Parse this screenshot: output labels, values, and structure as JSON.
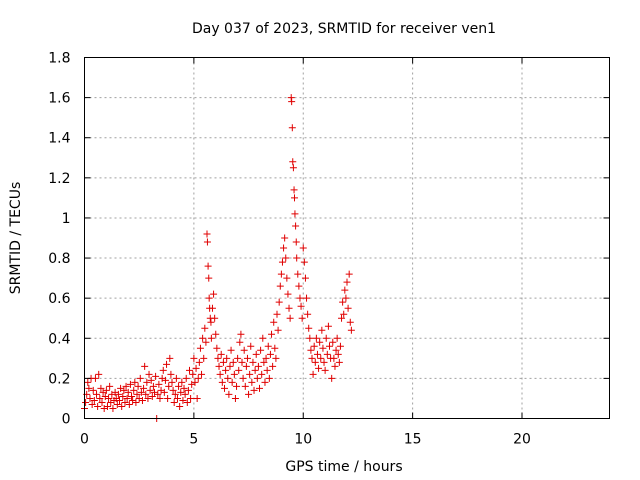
{
  "chart_data": {
    "type": "scatter",
    "title": "Day 037 of 2023, SRMTID for receiver ven1",
    "xlabel": "GPS time / hours",
    "ylabel": "SRMTID / TECUs",
    "xlim": [
      0,
      24
    ],
    "ylim": [
      0,
      1.8
    ],
    "xticks": [
      0,
      5,
      10,
      15,
      20
    ],
    "yticks": [
      0,
      0.2,
      0.4,
      0.6,
      0.8,
      1,
      1.2,
      1.4,
      1.6,
      1.8
    ],
    "xtick_labels": [
      "0",
      "5",
      "10",
      "15",
      "20"
    ],
    "ytick_labels": [
      "0",
      "0.2",
      "0.4",
      "0.6",
      "0.8",
      "1",
      "1.2",
      "1.4",
      "1.6",
      "1.8"
    ],
    "grid": true,
    "marker": "plus",
    "color": "#e00000",
    "series": [
      {
        "name": "ven1",
        "points": [
          [
            0.0,
            0.05
          ],
          [
            0.05,
            0.08
          ],
          [
            0.1,
            0.12
          ],
          [
            0.15,
            0.18
          ],
          [
            0.2,
            0.15
          ],
          [
            0.25,
            0.1
          ],
          [
            0.3,
            0.2
          ],
          [
            0.35,
            0.07
          ],
          [
            0.4,
            0.14
          ],
          [
            0.45,
            0.09
          ],
          [
            0.5,
            0.2
          ],
          [
            0.55,
            0.12
          ],
          [
            0.6,
            0.06
          ],
          [
            0.65,
            0.22
          ],
          [
            0.7,
            0.1
          ],
          [
            0.75,
            0.15
          ],
          [
            0.8,
            0.08
          ],
          [
            0.85,
            0.13
          ],
          [
            0.9,
            0.05
          ],
          [
            0.95,
            0.11
          ],
          [
            1.0,
            0.14
          ],
          [
            1.05,
            0.06
          ],
          [
            1.1,
            0.1
          ],
          [
            1.15,
            0.16
          ],
          [
            1.2,
            0.08
          ],
          [
            1.25,
            0.12
          ],
          [
            1.3,
            0.05
          ],
          [
            1.35,
            0.09
          ],
          [
            1.4,
            0.13
          ],
          [
            1.45,
            0.1
          ],
          [
            1.5,
            0.07
          ],
          [
            1.55,
            0.12
          ],
          [
            1.6,
            0.09
          ],
          [
            1.65,
            0.15
          ],
          [
            1.7,
            0.06
          ],
          [
            1.75,
            0.11
          ],
          [
            1.8,
            0.14
          ],
          [
            1.85,
            0.08
          ],
          [
            1.9,
            0.16
          ],
          [
            1.95,
            0.1
          ],
          [
            2.0,
            0.13
          ],
          [
            2.05,
            0.07
          ],
          [
            2.1,
            0.17
          ],
          [
            2.15,
            0.11
          ],
          [
            2.2,
            0.09
          ],
          [
            2.25,
            0.14
          ],
          [
            2.3,
            0.18
          ],
          [
            2.35,
            0.08
          ],
          [
            2.4,
            0.12
          ],
          [
            2.45,
            0.16
          ],
          [
            2.5,
            0.1
          ],
          [
            2.55,
            0.2
          ],
          [
            2.6,
            0.13
          ],
          [
            2.65,
            0.09
          ],
          [
            2.7,
            0.15
          ],
          [
            2.75,
            0.26
          ],
          [
            2.8,
            0.12
          ],
          [
            2.85,
            0.18
          ],
          [
            2.9,
            0.1
          ],
          [
            2.95,
            0.22
          ],
          [
            3.0,
            0.14
          ],
          [
            3.05,
            0.19
          ],
          [
            3.1,
            0.11
          ],
          [
            3.15,
            0.16
          ],
          [
            3.2,
            0.13
          ],
          [
            3.25,
            0.21
          ],
          [
            3.3,
            0.0
          ],
          [
            3.35,
            0.12
          ],
          [
            3.4,
            0.17
          ],
          [
            3.45,
            0.1
          ],
          [
            3.5,
            0.14
          ],
          [
            3.55,
            0.2
          ],
          [
            3.6,
            0.24
          ],
          [
            3.65,
            0.13
          ],
          [
            3.7,
            0.19
          ],
          [
            3.75,
            0.27
          ],
          [
            3.8,
            0.1
          ],
          [
            3.85,
            0.16
          ],
          [
            3.9,
            0.3
          ],
          [
            3.95,
            0.22
          ],
          [
            4.0,
            0.18
          ],
          [
            4.05,
            0.14
          ],
          [
            4.1,
            0.08
          ],
          [
            4.15,
            0.12
          ],
          [
            4.2,
            0.2
          ],
          [
            4.25,
            0.1
          ],
          [
            4.3,
            0.16
          ],
          [
            4.35,
            0.06
          ],
          [
            4.4,
            0.13
          ],
          [
            4.45,
            0.18
          ],
          [
            4.5,
            0.09
          ],
          [
            4.55,
            0.15
          ],
          [
            4.6,
            0.12
          ],
          [
            4.65,
            0.2
          ],
          [
            4.7,
            0.08
          ],
          [
            4.75,
            0.14
          ],
          [
            4.8,
            0.24
          ],
          [
            4.85,
            0.1
          ],
          [
            4.9,
            0.17
          ],
          [
            4.95,
            0.22
          ],
          [
            5.0,
            0.3
          ],
          [
            5.05,
            0.18
          ],
          [
            5.1,
            0.25
          ],
          [
            5.15,
            0.1
          ],
          [
            5.2,
            0.2
          ],
          [
            5.25,
            0.28
          ],
          [
            5.3,
            0.35
          ],
          [
            5.35,
            0.22
          ],
          [
            5.4,
            0.4
          ],
          [
            5.45,
            0.3
          ],
          [
            5.5,
            0.45
          ],
          [
            5.55,
            0.38
          ],
          [
            5.6,
            0.92
          ],
          [
            5.62,
            0.88
          ],
          [
            5.65,
            0.76
          ],
          [
            5.68,
            0.7
          ],
          [
            5.7,
            0.6
          ],
          [
            5.72,
            0.55
          ],
          [
            5.75,
            0.5
          ],
          [
            5.78,
            0.48
          ],
          [
            5.8,
            0.4
          ],
          [
            5.85,
            0.55
          ],
          [
            5.9,
            0.62
          ],
          [
            5.95,
            0.5
          ],
          [
            6.0,
            0.42
          ],
          [
            6.05,
            0.35
          ],
          [
            6.1,
            0.3
          ],
          [
            6.15,
            0.26
          ],
          [
            6.2,
            0.22
          ],
          [
            6.25,
            0.32
          ],
          [
            6.3,
            0.18
          ],
          [
            6.35,
            0.28
          ],
          [
            6.4,
            0.15
          ],
          [
            6.45,
            0.24
          ],
          [
            6.5,
            0.3
          ],
          [
            6.55,
            0.2
          ],
          [
            6.6,
            0.12
          ],
          [
            6.65,
            0.26
          ],
          [
            6.7,
            0.34
          ],
          [
            6.75,
            0.18
          ],
          [
            6.8,
            0.28
          ],
          [
            6.85,
            0.22
          ],
          [
            6.9,
            0.1
          ],
          [
            6.95,
            0.16
          ],
          [
            7.0,
            0.3
          ],
          [
            7.05,
            0.24
          ],
          [
            7.1,
            0.38
          ],
          [
            7.15,
            0.42
          ],
          [
            7.2,
            0.28
          ],
          [
            7.25,
            0.2
          ],
          [
            7.3,
            0.34
          ],
          [
            7.35,
            0.16
          ],
          [
            7.4,
            0.26
          ],
          [
            7.45,
            0.3
          ],
          [
            7.5,
            0.12
          ],
          [
            7.55,
            0.22
          ],
          [
            7.6,
            0.36
          ],
          [
            7.65,
            0.18
          ],
          [
            7.7,
            0.28
          ],
          [
            7.75,
            0.14
          ],
          [
            7.8,
            0.24
          ],
          [
            7.85,
            0.32
          ],
          [
            7.9,
            0.2
          ],
          [
            7.95,
            0.26
          ],
          [
            8.0,
            0.15
          ],
          [
            8.05,
            0.34
          ],
          [
            8.1,
            0.22
          ],
          [
            8.15,
            0.4
          ],
          [
            8.2,
            0.28
          ],
          [
            8.25,
            0.18
          ],
          [
            8.3,
            0.3
          ],
          [
            8.35,
            0.24
          ],
          [
            8.4,
            0.36
          ],
          [
            8.45,
            0.2
          ],
          [
            8.5,
            0.32
          ],
          [
            8.55,
            0.42
          ],
          [
            8.6,
            0.26
          ],
          [
            8.65,
            0.48
          ],
          [
            8.7,
            0.35
          ],
          [
            8.75,
            0.3
          ],
          [
            8.8,
            0.52
          ],
          [
            8.85,
            0.44
          ],
          [
            8.9,
            0.58
          ],
          [
            8.95,
            0.66
          ],
          [
            9.0,
            0.72
          ],
          [
            9.05,
            0.78
          ],
          [
            9.1,
            0.85
          ],
          [
            9.15,
            0.9
          ],
          [
            9.2,
            0.8
          ],
          [
            9.25,
            0.7
          ],
          [
            9.3,
            0.62
          ],
          [
            9.35,
            0.55
          ],
          [
            9.4,
            0.5
          ],
          [
            9.45,
            1.6
          ],
          [
            9.47,
            1.58
          ],
          [
            9.5,
            1.45
          ],
          [
            9.52,
            1.28
          ],
          [
            9.55,
            1.25
          ],
          [
            9.58,
            1.14
          ],
          [
            9.6,
            1.1
          ],
          [
            9.62,
            1.02
          ],
          [
            9.65,
            0.96
          ],
          [
            9.68,
            0.88
          ],
          [
            9.7,
            0.8
          ],
          [
            9.75,
            0.72
          ],
          [
            9.8,
            0.66
          ],
          [
            9.85,
            0.6
          ],
          [
            9.9,
            0.56
          ],
          [
            9.95,
            0.5
          ],
          [
            10.0,
            0.85
          ],
          [
            10.05,
            0.78
          ],
          [
            10.1,
            0.7
          ],
          [
            10.15,
            0.6
          ],
          [
            10.2,
            0.52
          ],
          [
            10.25,
            0.45
          ],
          [
            10.3,
            0.4
          ],
          [
            10.35,
            0.34
          ],
          [
            10.4,
            0.3
          ],
          [
            10.45,
            0.22
          ],
          [
            10.5,
            0.36
          ],
          [
            10.55,
            0.28
          ],
          [
            10.6,
            0.4
          ],
          [
            10.65,
            0.32
          ],
          [
            10.7,
            0.25
          ],
          [
            10.75,
            0.38
          ],
          [
            10.8,
            0.3
          ],
          [
            10.85,
            0.44
          ],
          [
            10.9,
            0.35
          ],
          [
            10.95,
            0.28
          ],
          [
            11.0,
            0.24
          ],
          [
            11.05,
            0.4
          ],
          [
            11.1,
            0.32
          ],
          [
            11.15,
            0.46
          ],
          [
            11.2,
            0.36
          ],
          [
            11.25,
            0.3
          ],
          [
            11.3,
            0.2
          ],
          [
            11.35,
            0.38
          ],
          [
            11.4,
            0.3
          ],
          [
            11.45,
            0.26
          ],
          [
            11.5,
            0.34
          ],
          [
            11.55,
            0.4
          ],
          [
            11.6,
            0.32
          ],
          [
            11.65,
            0.28
          ],
          [
            11.7,
            0.36
          ],
          [
            11.75,
            0.5
          ],
          [
            11.8,
            0.58
          ],
          [
            11.85,
            0.52
          ],
          [
            11.9,
            0.64
          ],
          [
            11.95,
            0.6
          ],
          [
            12.0,
            0.68
          ],
          [
            12.05,
            0.55
          ],
          [
            12.1,
            0.72
          ],
          [
            12.15,
            0.48
          ],
          [
            12.2,
            0.44
          ]
        ]
      }
    ]
  }
}
